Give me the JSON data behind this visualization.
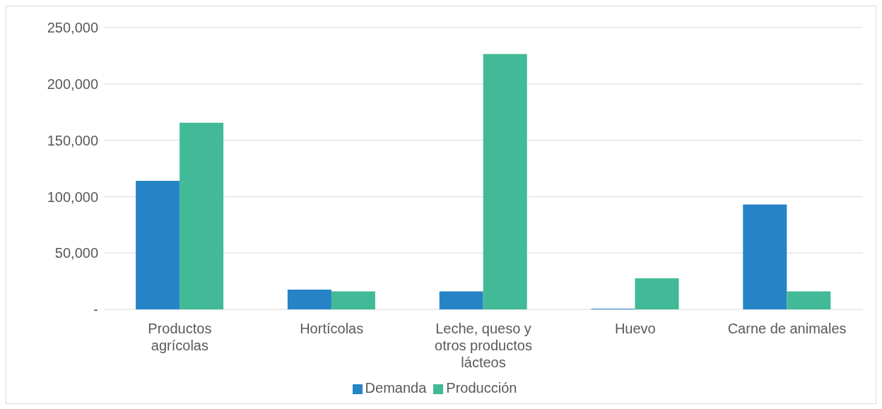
{
  "chart_data": {
    "type": "bar",
    "categories": [
      "Productos agrícolas",
      "Hortícolas",
      "Leche, queso y otros productos lácteos",
      "Huevo",
      "Carne de animales"
    ],
    "series": [
      {
        "name": "Demanda",
        "color": "#2683c6",
        "values": [
          114000,
          17500,
          16000,
          700,
          93000
        ]
      },
      {
        "name": "Producción",
        "color": "#42ba97",
        "values": [
          165500,
          16000,
          226500,
          27500,
          16000
        ]
      }
    ],
    "ylim": [
      0,
      250000
    ],
    "yticks": [
      {
        "value": 0,
        "label": "-"
      },
      {
        "value": 50000,
        "label": "50,000"
      },
      {
        "value": 100000,
        "label": "100,000"
      },
      {
        "value": 150000,
        "label": "150,000"
      },
      {
        "value": 200000,
        "label": "200,000"
      },
      {
        "value": 250000,
        "label": "250,000"
      }
    ],
    "grid": "y",
    "legend": "bottom"
  }
}
